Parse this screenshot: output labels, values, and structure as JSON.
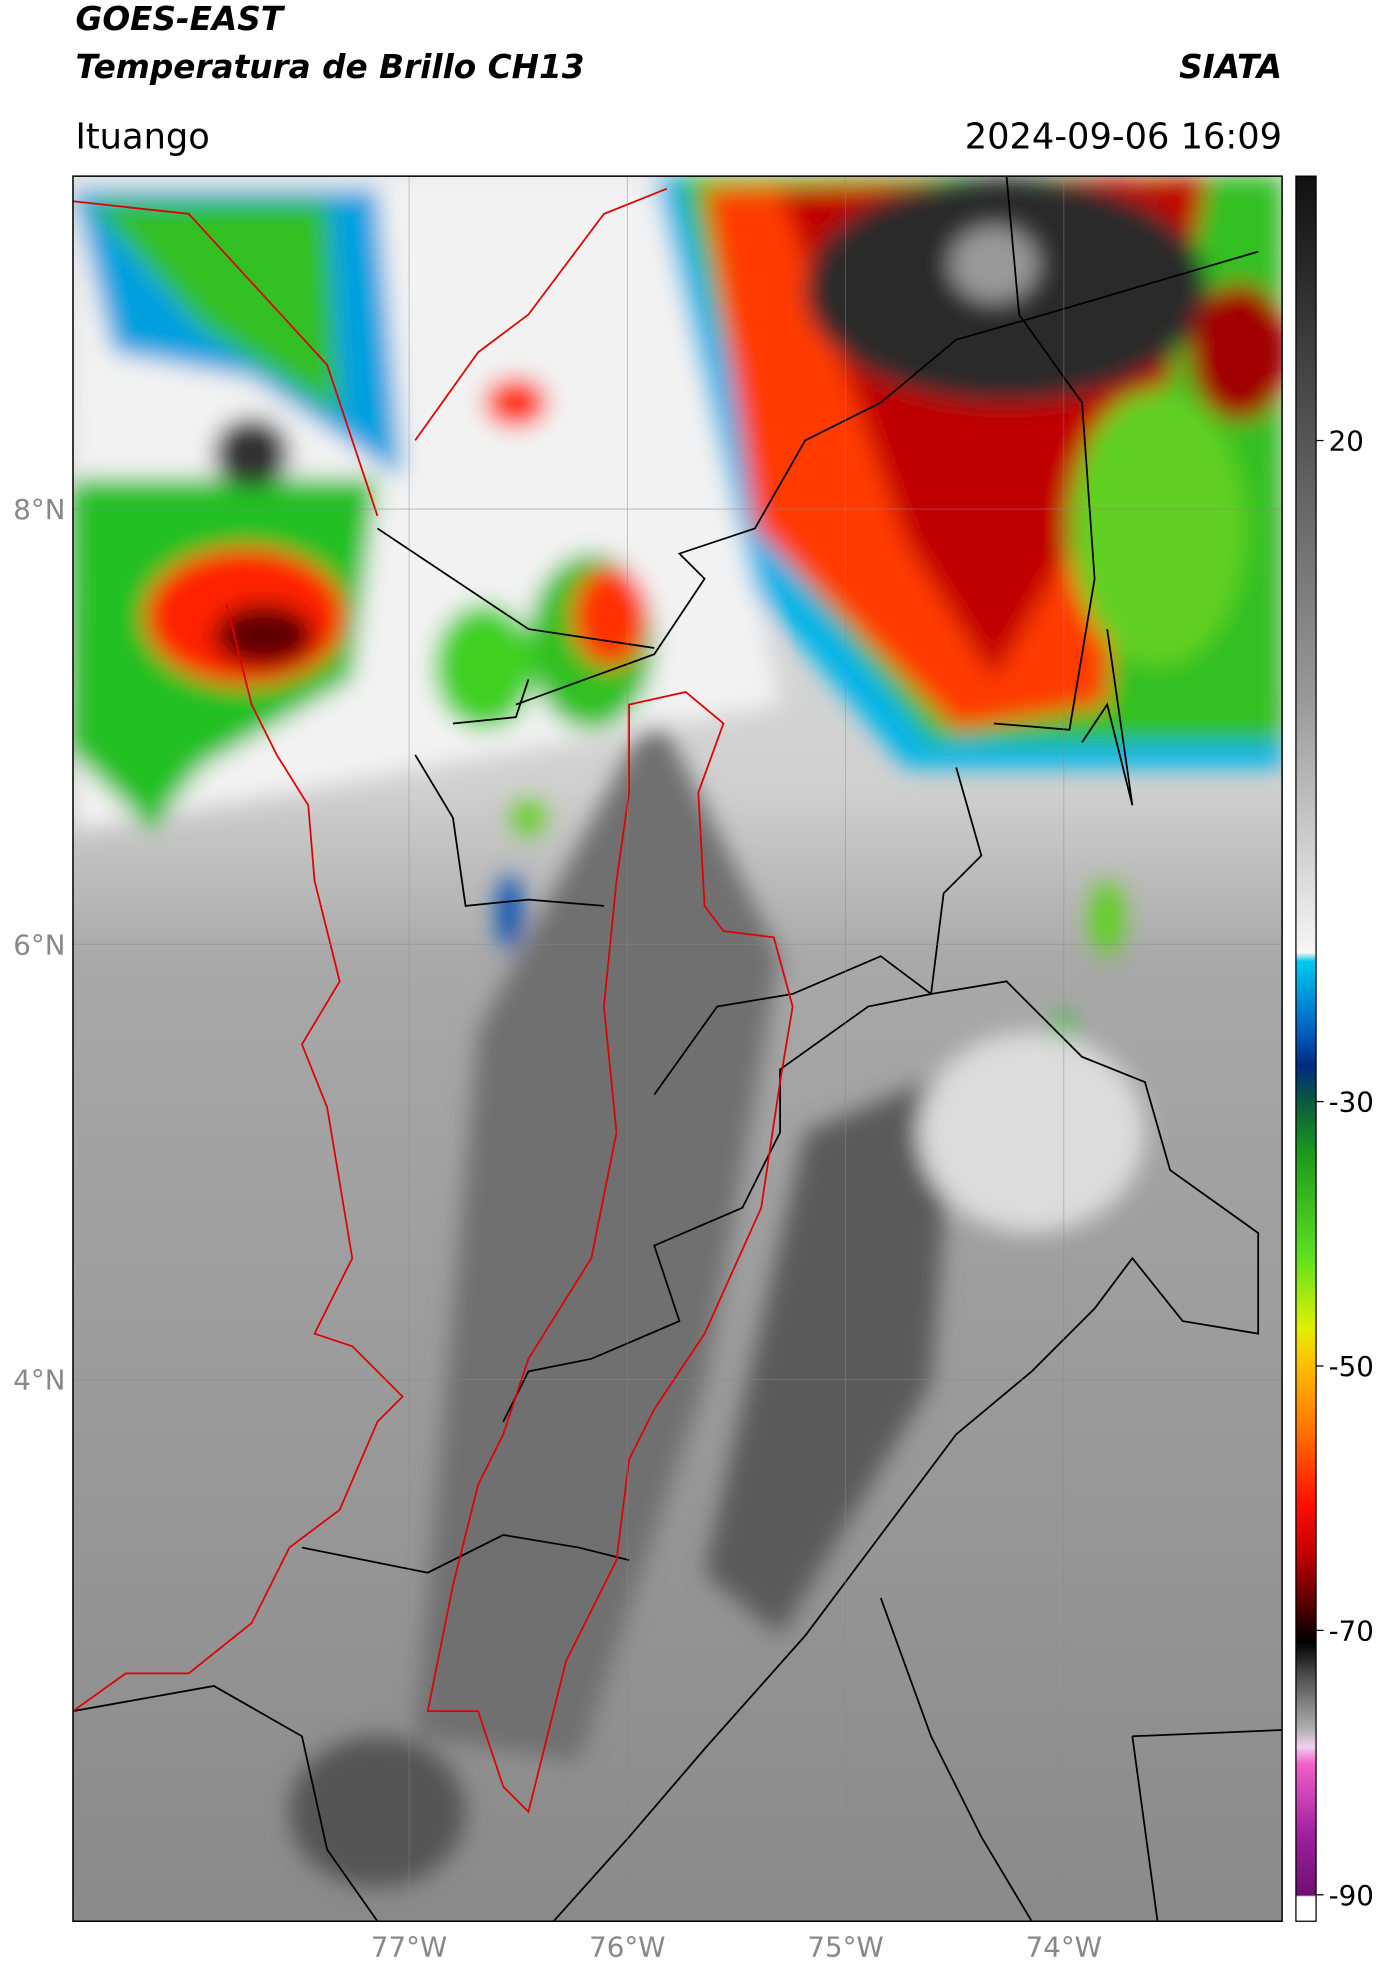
{
  "header": {
    "title": "GOES-EAST",
    "subtitle": "Temperatura de Brillo CH13",
    "source": "SIATA",
    "location": "Ituango",
    "datetime": "2024-09-06 16:09"
  },
  "map": {
    "lat_range": [
      1.51,
      9.53
    ],
    "lon_range": [
      -78.54,
      -73
    ],
    "lat_ticks": [
      {
        "value": 8,
        "label": "8°N"
      },
      {
        "value": 6,
        "label": "6°N"
      },
      {
        "value": 4,
        "label": "4°N"
      }
    ],
    "lon_ticks": [
      {
        "value": -77,
        "label": "77°W"
      },
      {
        "value": -76,
        "label": "76°W"
      },
      {
        "value": -75,
        "label": "75°W"
      },
      {
        "value": -74,
        "label": "74°W"
      }
    ]
  },
  "colorbar": {
    "range": [
      -92,
      40
    ],
    "ticks": [
      20,
      -30,
      -50,
      -70,
      -90
    ]
  }
}
